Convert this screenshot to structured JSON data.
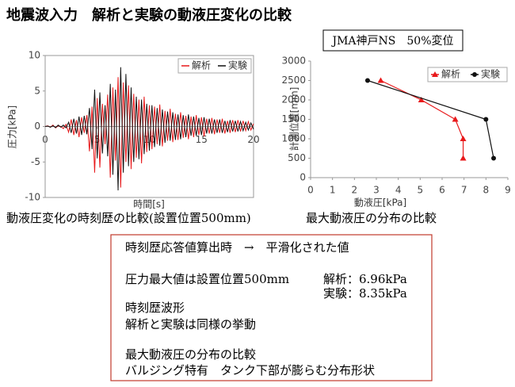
{
  "title": "地震波入力　解析と実験の動液圧変化の比較",
  "condition": "JMA神戸NS　50%変位",
  "captions": [
    "動液圧変化の時刻歴の比較(設置位置500mm)",
    "最大動液圧の分布の比較"
  ],
  "notes": {
    "lines": [
      "時刻歴応答値算出時　→　平滑化された値",
      "圧力最大値は設置位置500mm",
      "時刻歴波形",
      "解析と実験は同様の挙動",
      "最大動液圧の分布の比較",
      "バルジング特有　タンク下部が膨らむ分布形状"
    ],
    "results": [
      "解析：6.96kPa",
      "実験：8.35kPa"
    ]
  },
  "chart_data": [
    {
      "type": "line",
      "xlabel": "時間[s]",
      "ylabel": "圧力[kPa]",
      "xlim": [
        0,
        20
      ],
      "xticks": [
        0,
        5,
        10,
        15,
        20
      ],
      "ylim": [
        -10,
        10
      ],
      "yticks": [
        -10,
        -5,
        0,
        5,
        10
      ],
      "x": [
        0,
        0.25,
        0.5,
        0.75,
        1,
        1.25,
        1.5,
        1.75,
        2,
        2.25,
        2.5,
        2.75,
        3,
        3.25,
        3.5,
        3.75,
        4,
        4.25,
        4.5,
        4.75,
        5,
        5.25,
        5.5,
        5.75,
        6,
        6.25,
        6.5,
        6.75,
        7,
        7.25,
        7.5,
        7.75,
        8,
        8.25,
        8.5,
        8.75,
        9,
        9.25,
        9.5,
        9.75,
        10,
        10.25,
        10.5,
        10.75,
        11,
        11.25,
        11.5,
        11.75,
        12,
        12.25,
        12.5,
        12.75,
        13,
        13.25,
        13.5,
        13.75,
        14,
        14.25,
        14.5,
        14.75,
        15,
        15.25,
        15.5,
        15.75,
        16,
        16.25,
        16.5,
        16.75,
        17,
        17.25,
        17.5,
        17.75,
        18,
        18.25,
        18.5,
        18.75,
        19,
        19.25,
        19.5,
        19.75,
        20
      ],
      "series": [
        {
          "name": "解析",
          "color": "#e8191b",
          "values": [
            0,
            0.1,
            -0.1,
            0.2,
            -0.2,
            0.1,
            0,
            -0.3,
            0.3,
            -0.8,
            1.0,
            -1.2,
            0.9,
            -1.5,
            1.3,
            -0.9,
            1.6,
            -3.5,
            2.8,
            -6.5,
            4.0,
            -5.8,
            3.2,
            -2.5,
            4.5,
            -7.2,
            5.5,
            -4.8,
            6.96,
            -8.6,
            6.2,
            -5.0,
            5.8,
            -6.0,
            4.6,
            -4.4,
            3.8,
            -5.2,
            4.2,
            -3.6,
            3.0,
            -3.2,
            2.8,
            -2.5,
            3.1,
            -2.8,
            2.2,
            -2.0,
            2.5,
            -2.2,
            1.8,
            -1.9,
            2.0,
            -1.6,
            1.5,
            -1.8,
            1.4,
            -1.5,
            1.6,
            -1.2,
            1.3,
            -1.4,
            1.1,
            -1.0,
            1.2,
            -1.1,
            1.0,
            -0.9,
            1.1,
            -1.0,
            0.8,
            -0.9,
            0.9,
            -0.8,
            0.9,
            -0.7,
            0.8,
            -0.6,
            0.7,
            -0.5,
            0.4
          ]
        },
        {
          "name": "実験",
          "color": "#111111",
          "values": [
            0,
            0.05,
            -0.1,
            0.1,
            -0.15,
            0.2,
            -0.1,
            0.2,
            -0.2,
            0.6,
            -0.9,
            1.1,
            -1.0,
            1.4,
            -1.2,
            1.5,
            -1.1,
            2.6,
            -3.2,
            5.2,
            -4.5,
            4.8,
            -3.8,
            3.0,
            -4.2,
            6.0,
            -6.8,
            5.2,
            -9.0,
            8.35,
            -6.5,
            7.4,
            -5.6,
            5.5,
            -5.0,
            4.2,
            -4.6,
            3.8,
            -3.9,
            3.2,
            -3.4,
            3.0,
            -2.9,
            2.6,
            -2.7,
            2.4,
            -2.3,
            2.1,
            -2.0,
            2.0,
            -1.9,
            1.7,
            -1.8,
            1.6,
            -1.5,
            1.7,
            -1.3,
            1.4,
            -1.3,
            1.2,
            -1.2,
            1.3,
            -1.0,
            1.1,
            -1.0,
            1.0,
            -0.9,
            1.0,
            -0.9,
            0.8,
            -0.8,
            0.9,
            -0.7,
            0.8,
            -0.7,
            0.7,
            -0.6,
            0.6,
            -0.5,
            0.5,
            -0.4
          ]
        }
      ]
    },
    {
      "type": "line",
      "xlabel": "動液圧[kPa]",
      "ylabel": "計測位置[mm]",
      "xlim": [
        0,
        9
      ],
      "xticks": [
        0,
        1,
        2,
        3,
        4,
        5,
        6,
        7,
        8,
        9
      ],
      "ylim": [
        0,
        3000
      ],
      "yticks": [
        0,
        500,
        1000,
        1500,
        2000,
        2500,
        3000
      ],
      "series": [
        {
          "name": "解析",
          "color": "#e8191b",
          "marker": "triangle",
          "x": [
            3.2,
            5.05,
            6.6,
            6.96,
            6.96
          ],
          "values": [
            2500,
            2000,
            1500,
            1000,
            500
          ]
        },
        {
          "name": "実験",
          "color": "#111111",
          "marker": "circle",
          "x": [
            2.6,
            8.0,
            8.35
          ],
          "values": [
            2500,
            1500,
            500
          ]
        }
      ]
    }
  ]
}
